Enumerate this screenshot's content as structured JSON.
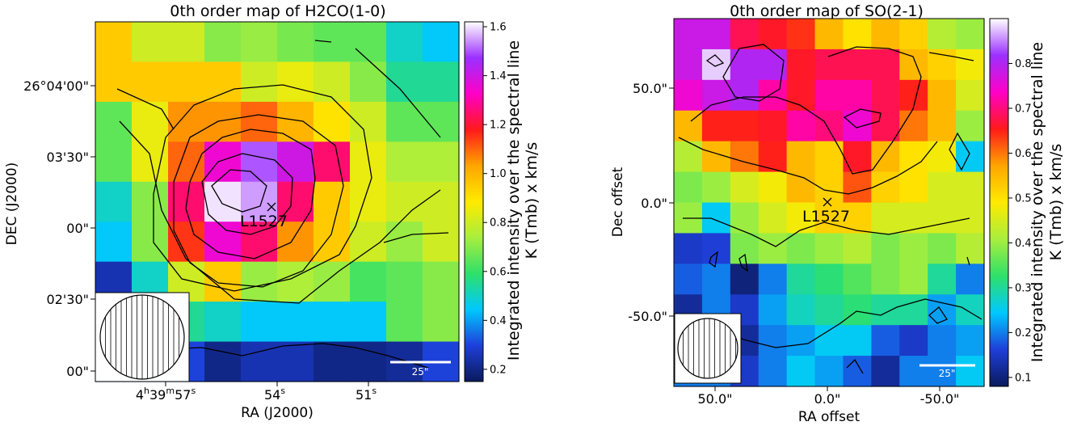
{
  "chart_data": [
    {
      "type": "heatmap",
      "title": "0th order map of H2CO(1-0)",
      "xlabel": "RA (J2000)",
      "ylabel": "DEC (J2000)",
      "x_ticks": [
        "4h39m57s",
        "54s",
        "51s"
      ],
      "y_ticks": [
        "26°04'00\"",
        "03'30\"",
        "00\"",
        "02'30\"",
        "00\""
      ],
      "colorbar_label_lines": [
        "Integrated intensity over the spectral line",
        "K (Tmb) x km/s"
      ],
      "colorbar_ticks": [
        "1.6",
        "1.4",
        "1.2",
        "1.0",
        "0.8",
        "0.6",
        "0.4",
        "0.2"
      ],
      "colorbar_range": [
        0.15,
        1.62
      ],
      "source_label": "L1527",
      "scalebar_label": "25\"",
      "grid_cols": 10,
      "grid_rows": 9,
      "values": [
        [
          0.95,
          0.8,
          0.8,
          0.7,
          0.72,
          0.68,
          0.65,
          0.65,
          0.5,
          0.45
        ],
        [
          0.95,
          0.95,
          0.95,
          0.95,
          0.8,
          0.85,
          0.8,
          0.7,
          0.55,
          0.55
        ],
        [
          0.65,
          0.85,
          1.05,
          1.05,
          1.1,
          1.0,
          0.9,
          0.8,
          0.65,
          0.65
        ],
        [
          0.65,
          0.85,
          1.1,
          1.35,
          1.5,
          1.4,
          1.25,
          0.85,
          0.75,
          0.75
        ],
        [
          0.5,
          0.7,
          1.25,
          1.6,
          1.55,
          1.25,
          0.95,
          0.85,
          0.8,
          0.8
        ],
        [
          0.45,
          0.7,
          1.15,
          1.35,
          1.25,
          1.05,
          0.95,
          0.8,
          0.72,
          0.8
        ],
        [
          0.25,
          0.5,
          0.8,
          0.95,
          0.72,
          0.75,
          0.72,
          0.62,
          0.65,
          0.7
        ],
        [
          0.55,
          0.55,
          0.55,
          0.5,
          0.45,
          0.45,
          0.45,
          0.45,
          0.65,
          0.7
        ],
        [
          0.3,
          0.3,
          0.3,
          0.2,
          0.25,
          0.25,
          0.2,
          0.2,
          0.22,
          0.3
        ]
      ],
      "grid": false
    },
    {
      "type": "heatmap",
      "title": "0th order map of SO(2-1)",
      "xlabel": "RA offset",
      "ylabel": "Dec offset",
      "x_ticks": [
        "50.0\"",
        "0.0\"",
        "-50.0\""
      ],
      "y_ticks": [
        "50.0\"",
        "0.0\"",
        "-50.0\""
      ],
      "colorbar_label_lines": [
        "Integrated intensity over the spectral line",
        "K (Tmb) x km/s"
      ],
      "colorbar_ticks": [
        "0.8",
        "0.7",
        "0.6",
        "0.5",
        "0.4",
        "0.3",
        "0.2",
        "0.1"
      ],
      "colorbar_range": [
        0.08,
        0.9
      ],
      "source_label": "L1527",
      "scalebar_label": "25\"",
      "grid_cols": 11,
      "grid_rows": 12,
      "values": [
        [
          0.78,
          0.78,
          0.68,
          0.66,
          0.64,
          0.55,
          0.5,
          0.55,
          0.52,
          0.42,
          0.4
        ],
        [
          0.78,
          0.88,
          0.8,
          0.8,
          0.66,
          0.68,
          0.68,
          0.68,
          0.55,
          0.52,
          0.48
        ],
        [
          0.75,
          0.78,
          0.8,
          0.72,
          0.66,
          0.72,
          0.72,
          0.68,
          0.65,
          0.55,
          0.45
        ],
        [
          0.55,
          0.65,
          0.65,
          0.66,
          0.72,
          0.7,
          0.75,
          0.68,
          0.6,
          0.55,
          0.4
        ],
        [
          0.42,
          0.55,
          0.6,
          0.65,
          0.55,
          0.52,
          0.66,
          0.55,
          0.5,
          0.48,
          0.25
        ],
        [
          0.38,
          0.4,
          0.45,
          0.48,
          0.55,
          0.52,
          0.62,
          0.52,
          0.5,
          0.45,
          0.45
        ],
        [
          0.4,
          0.25,
          0.4,
          0.45,
          0.48,
          0.52,
          0.52,
          0.45,
          0.45,
          0.45,
          0.45
        ],
        [
          0.15,
          0.16,
          0.38,
          0.4,
          0.38,
          0.4,
          0.42,
          0.38,
          0.4,
          0.38,
          0.42
        ],
        [
          0.18,
          0.2,
          0.1,
          0.2,
          0.3,
          0.32,
          0.35,
          0.38,
          0.4,
          0.3,
          0.2
        ],
        [
          0.12,
          0.2,
          0.15,
          0.22,
          0.28,
          0.3,
          0.32,
          0.3,
          0.3,
          0.22,
          0.28
        ],
        [
          0.1,
          0.14,
          0.12,
          0.2,
          0.22,
          0.25,
          0.25,
          0.18,
          0.15,
          0.2,
          0.22
        ],
        [
          0.2,
          0.2,
          0.15,
          0.2,
          0.25,
          0.22,
          0.18,
          0.12,
          0.2,
          0.2,
          0.25
        ]
      ],
      "grid": false
    }
  ],
  "colormap_stops": [
    "#0a1a5c",
    "#1e3fd9",
    "#00c8ff",
    "#2ee06a",
    "#a8ee3e",
    "#ffea00",
    "#ffa500",
    "#ff1a1a",
    "#ff00c8",
    "#9b30ff",
    "#ffffff"
  ]
}
